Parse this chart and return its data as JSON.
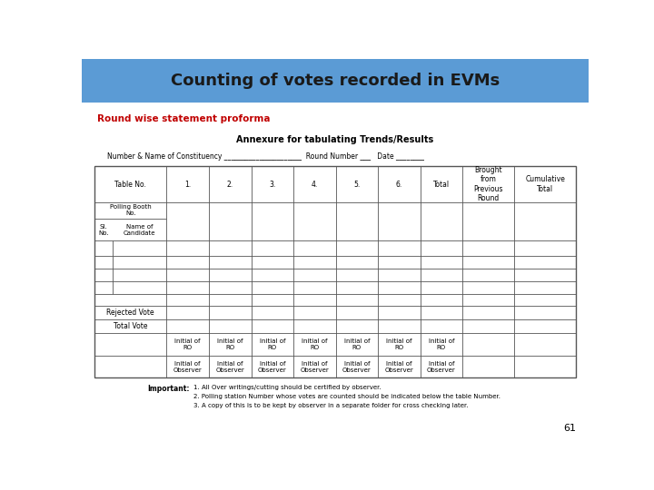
{
  "title": "Counting of votes recorded in EVMs",
  "title_bg": "#5b9bd5",
  "title_color": "#1a1a1a",
  "subtitle": "Round wise statement proforma",
  "subtitle_color": "#c00000",
  "annexure_text": "Annexure for tabulating Trends/Results",
  "constituency_text": "Number & Name of Constituency ______________________  Round Number ___   Date ________",
  "col_headers": [
    "Table No.",
    "1.",
    "2.",
    "3.",
    "4.",
    "5.",
    "6.",
    "Total",
    "Brought\nfrom\nPrevious\nRound",
    "Cumulative\nTotal"
  ],
  "empty_rows": 5,
  "bottom_labels": [
    "Rejected Vote",
    "Total Vote"
  ],
  "ro_text": "Initial of\nRO",
  "observer_text": "Initial of\nObserver",
  "important_title": "Important:",
  "important_points": [
    "1. All Over writings/cutting should be certified by observer.",
    "2. Polling station Number whose votes are counted should be indicated below the table Number.",
    "3. A copy of this is to be kept by observer in a separate folder for cross checking later."
  ],
  "page_number": "61",
  "bg_color": "#ffffff",
  "border_color": "#555555",
  "title_fontsize": 13,
  "subtitle_fontsize": 7.5,
  "annexure_fontsize": 7,
  "constituency_fontsize": 5.5,
  "header_fontsize": 5.5,
  "cell_fontsize": 5,
  "label_fontsize": 5.5,
  "important_fontsize": 5.5,
  "page_fontsize": 8
}
